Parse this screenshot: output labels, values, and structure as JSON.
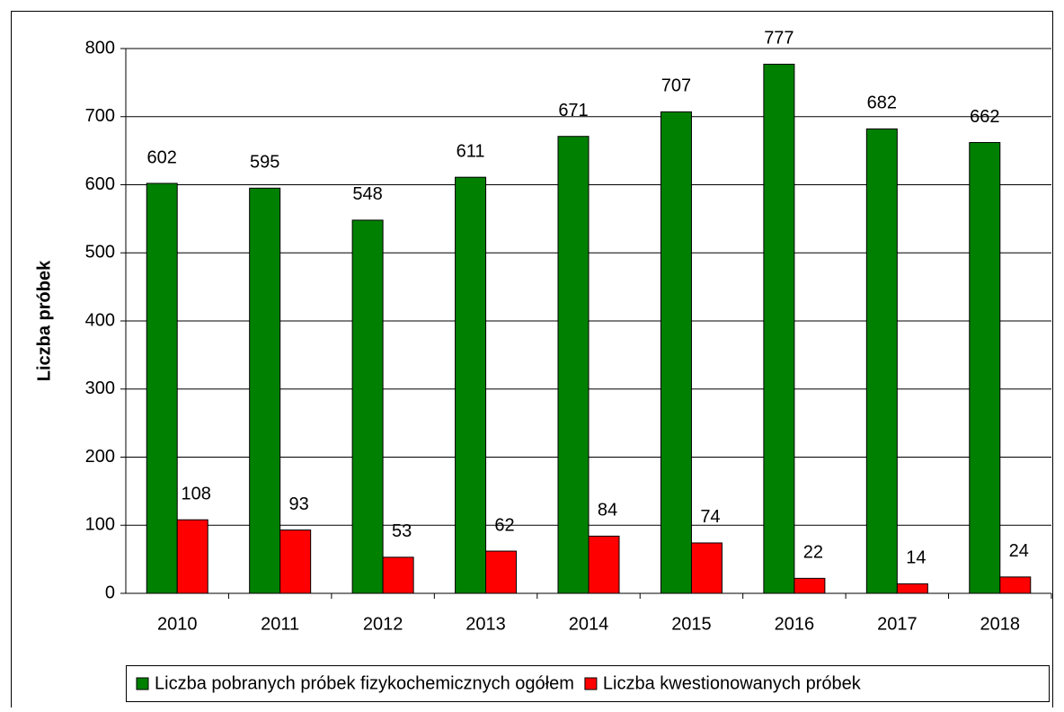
{
  "chart_data": {
    "type": "bar",
    "ylabel": "Liczba próbek",
    "categories": [
      "2010",
      "2011",
      "2012",
      "2013",
      "2014",
      "2015",
      "2016",
      "2017",
      "2018"
    ],
    "series": [
      {
        "name": "Liczba pobranych próbek fizykochemicznych ogółem",
        "color": "#008000",
        "values": [
          602,
          595,
          548,
          611,
          671,
          707,
          777,
          682,
          662
        ]
      },
      {
        "name": "Liczba kwestionowanych próbek",
        "color": "#ff0000",
        "values": [
          108,
          93,
          53,
          62,
          84,
          74,
          22,
          14,
          24
        ]
      }
    ],
    "ylim": [
      0,
      800
    ],
    "yticks": [
      0,
      100,
      200,
      300,
      400,
      500,
      600,
      700,
      800
    ],
    "grid": true,
    "legend": "bottom"
  }
}
